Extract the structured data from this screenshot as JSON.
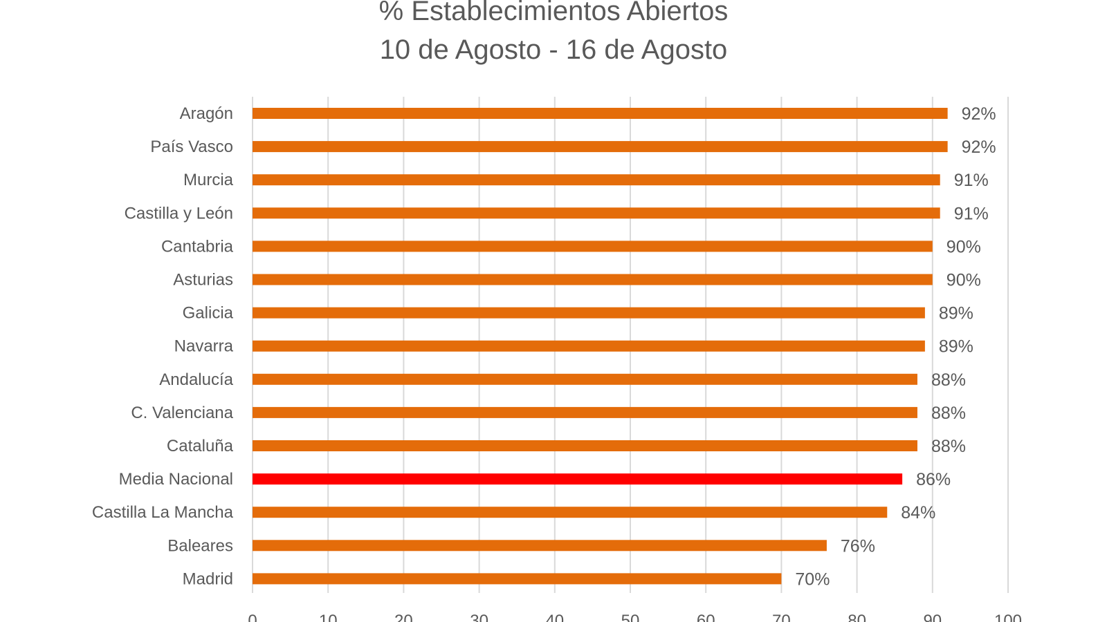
{
  "chart_data": {
    "type": "bar",
    "orientation": "horizontal",
    "title": "% Establecimientos Abiertos",
    "subtitle": "10 de Agosto - 16 de Agosto",
    "xlabel": "",
    "ylabel": "",
    "xlim": [
      0,
      100
    ],
    "xticks": [
      "0",
      "10",
      "20",
      "30",
      "40",
      "50",
      "60",
      "70",
      "80",
      "90",
      "100"
    ],
    "grid": true,
    "categories": [
      "Aragón",
      "País Vasco",
      "Murcia",
      "Castilla y León",
      "Cantabria",
      "Asturias",
      "Galicia",
      "Navarra",
      "Andalucía",
      "C. Valenciana",
      "Cataluña",
      "Media Nacional",
      "Castilla La Mancha",
      "Baleares",
      "Madrid"
    ],
    "values": [
      92,
      92,
      91,
      91,
      90,
      90,
      89,
      89,
      88,
      88,
      88,
      86,
      84,
      76,
      70
    ],
    "labels": [
      "92%",
      "92%",
      "91%",
      "91%",
      "90%",
      "90%",
      "89%",
      "89%",
      "88%",
      "88%",
      "88%",
      "86%",
      "84%",
      "76%",
      "70%"
    ],
    "colors": {
      "default": "#E46C0A",
      "highlight": "#FF0000",
      "highlight_category": "Media Nacional"
    }
  }
}
